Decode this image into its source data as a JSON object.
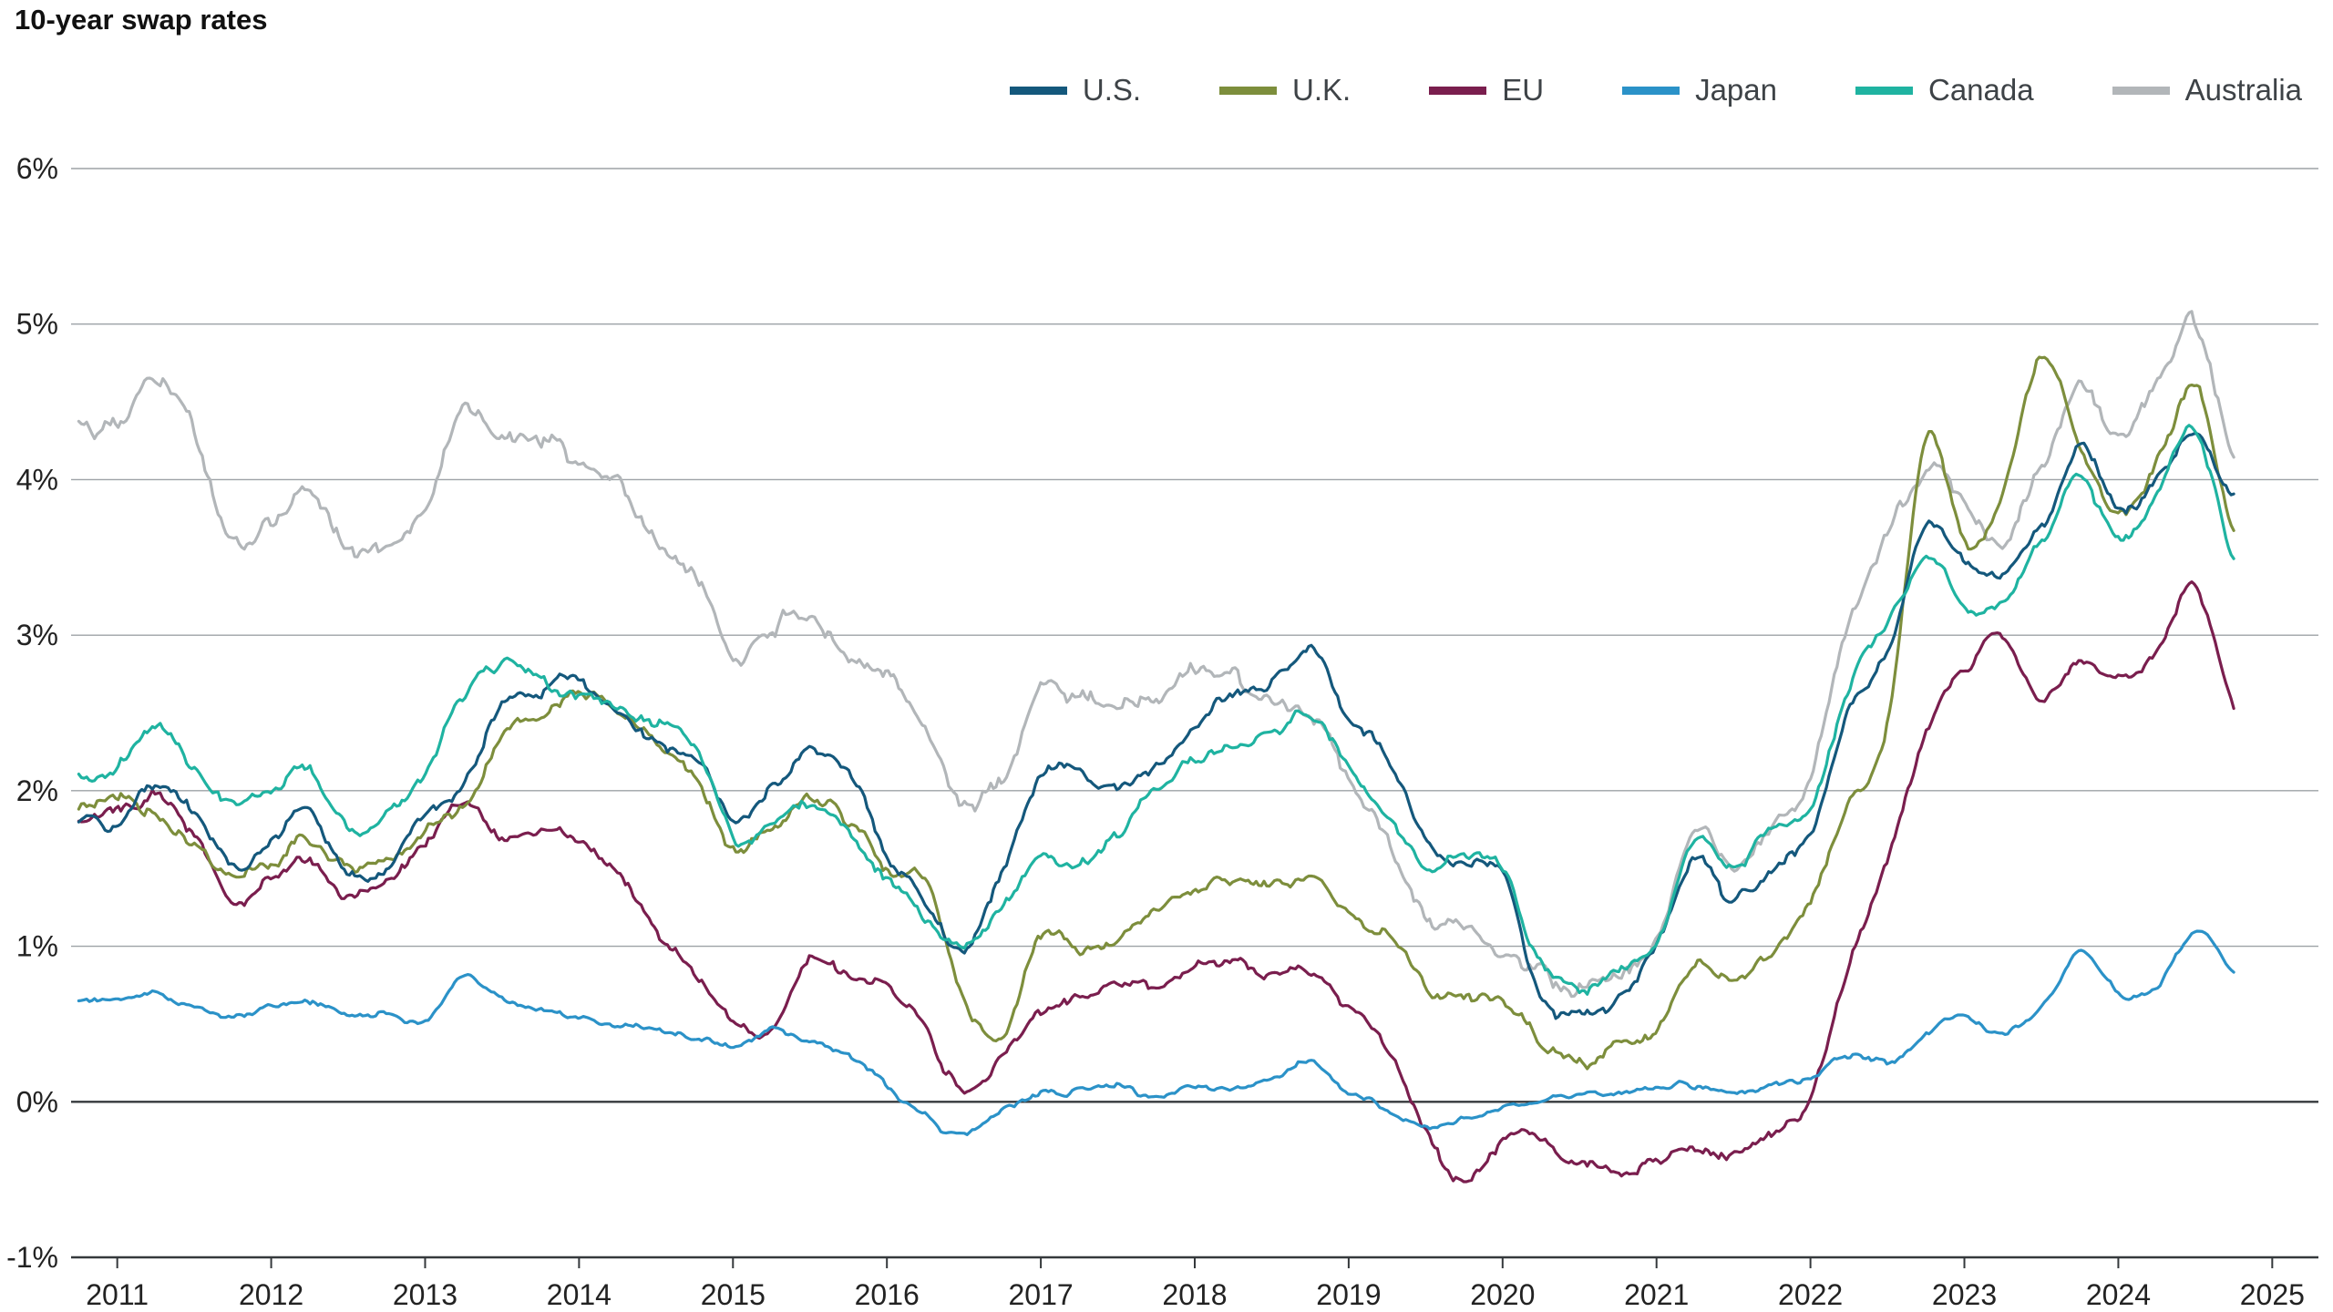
{
  "chart_data": {
    "type": "line",
    "title": "10-year swap rates",
    "xlabel": "",
    "ylabel": "",
    "xlim": [
      2010.7,
      2025.3
    ],
    "ylim": [
      -1,
      6
    ],
    "grid": "horizontal",
    "legend_position": "top-right",
    "y_ticks": [
      {
        "v": 6,
        "label": "6%"
      },
      {
        "v": 5,
        "label": "5%"
      },
      {
        "v": 4,
        "label": "4%"
      },
      {
        "v": 3,
        "label": "3%"
      },
      {
        "v": 2,
        "label": "2%"
      },
      {
        "v": 1,
        "label": "1%"
      },
      {
        "v": 0,
        "label": "0%"
      },
      {
        "v": -1,
        "label": "-1%"
      }
    ],
    "x_ticks": [
      {
        "v": 2011,
        "label": "2011"
      },
      {
        "v": 2012,
        "label": "2012"
      },
      {
        "v": 2013,
        "label": "2013"
      },
      {
        "v": 2014,
        "label": "2014"
      },
      {
        "v": 2015,
        "label": "2015"
      },
      {
        "v": 2016,
        "label": "2016"
      },
      {
        "v": 2017,
        "label": "2017"
      },
      {
        "v": 2018,
        "label": "2018"
      },
      {
        "v": 2019,
        "label": "2019"
      },
      {
        "v": 2020,
        "label": "2020"
      },
      {
        "v": 2021,
        "label": "2021"
      },
      {
        "v": 2022,
        "label": "2022"
      },
      {
        "v": 2023,
        "label": "2023"
      },
      {
        "v": 2024,
        "label": "2024"
      },
      {
        "v": 2025,
        "label": "2025"
      }
    ],
    "x": [
      2010.75,
      2011,
      2011.25,
      2011.5,
      2011.75,
      2012,
      2012.25,
      2012.5,
      2012.75,
      2013,
      2013.25,
      2013.5,
      2013.75,
      2014,
      2014.25,
      2014.5,
      2014.75,
      2015,
      2015.25,
      2015.5,
      2015.75,
      2016,
      2016.25,
      2016.5,
      2016.75,
      2017,
      2017.25,
      2017.5,
      2017.75,
      2018,
      2018.25,
      2018.5,
      2018.75,
      2019,
      2019.25,
      2019.5,
      2019.75,
      2020,
      2020.25,
      2020.5,
      2020.75,
      2021,
      2021.25,
      2021.5,
      2021.75,
      2022,
      2022.25,
      2022.5,
      2022.75,
      2023,
      2023.25,
      2023.5,
      2023.75,
      2024,
      2024.25,
      2024.5,
      2024.75
    ],
    "series": [
      {
        "name": "U.S.",
        "color": "#14587C",
        "jitter": 0.05,
        "values": [
          1.8,
          1.75,
          2.05,
          1.85,
          1.55,
          1.65,
          1.85,
          1.45,
          1.55,
          1.85,
          2.05,
          2.55,
          2.65,
          2.75,
          2.5,
          2.3,
          2.2,
          1.85,
          2.0,
          2.25,
          2.1,
          1.6,
          1.3,
          1.0,
          1.5,
          2.1,
          2.1,
          2.0,
          2.15,
          2.4,
          2.65,
          2.7,
          2.9,
          2.5,
          2.2,
          1.7,
          1.5,
          1.45,
          0.65,
          0.55,
          0.7,
          1.0,
          1.55,
          1.3,
          1.5,
          1.75,
          2.5,
          2.9,
          3.7,
          3.5,
          3.4,
          3.7,
          4.2,
          3.8,
          4.0,
          4.3,
          3.9
        ]
      },
      {
        "name": "U.K.",
        "color": "#7D8E3C",
        "jitter": 0.05,
        "values": [
          1.9,
          1.95,
          1.85,
          1.65,
          1.5,
          1.55,
          1.7,
          1.5,
          1.55,
          1.75,
          1.9,
          2.35,
          2.5,
          2.6,
          2.5,
          2.3,
          2.05,
          1.65,
          1.75,
          1.95,
          1.8,
          1.5,
          1.4,
          0.65,
          0.45,
          1.1,
          1.0,
          1.05,
          1.25,
          1.4,
          1.45,
          1.4,
          1.45,
          1.2,
          1.1,
          0.75,
          0.7,
          0.65,
          0.35,
          0.25,
          0.35,
          0.45,
          0.85,
          0.75,
          1.0,
          1.3,
          1.9,
          2.4,
          4.3,
          3.6,
          3.9,
          4.8,
          4.2,
          3.8,
          4.1,
          4.6,
          3.65
        ]
      },
      {
        "name": "EU",
        "color": "#7A1E4E",
        "jitter": 0.045,
        "values": [
          1.8,
          1.85,
          1.95,
          1.7,
          1.3,
          1.45,
          1.55,
          1.3,
          1.45,
          1.65,
          1.95,
          1.7,
          1.75,
          1.7,
          1.45,
          1.1,
          0.8,
          0.55,
          0.45,
          0.95,
          0.8,
          0.75,
          0.45,
          0.05,
          0.25,
          0.55,
          0.65,
          0.75,
          0.75,
          0.85,
          0.9,
          0.8,
          0.85,
          0.6,
          0.35,
          -0.2,
          -0.55,
          -0.25,
          -0.25,
          -0.4,
          -0.45,
          -0.4,
          -0.3,
          -0.35,
          -0.2,
          0.05,
          0.9,
          1.6,
          2.4,
          2.75,
          2.95,
          2.55,
          2.85,
          2.7,
          2.9,
          3.3,
          2.5
        ]
      },
      {
        "name": "Japan",
        "color": "#2B92C8",
        "jitter": 0.025,
        "values": [
          0.65,
          0.65,
          0.7,
          0.6,
          0.55,
          0.6,
          0.65,
          0.55,
          0.55,
          0.5,
          0.8,
          0.65,
          0.6,
          0.55,
          0.5,
          0.45,
          0.4,
          0.35,
          0.45,
          0.4,
          0.3,
          0.1,
          -0.1,
          -0.2,
          -0.05,
          0.05,
          0.05,
          0.1,
          0.05,
          0.1,
          0.1,
          0.15,
          0.25,
          0.05,
          -0.05,
          -0.15,
          -0.1,
          -0.05,
          0,
          0.05,
          0.05,
          0.1,
          0.1,
          0.05,
          0.1,
          0.15,
          0.3,
          0.25,
          0.45,
          0.55,
          0.45,
          0.6,
          0.95,
          0.7,
          0.75,
          1.1,
          0.85
        ]
      },
      {
        "name": "Canada",
        "color": "#1FB3A1",
        "jitter": 0.05,
        "values": [
          2.1,
          2.15,
          2.4,
          2.1,
          1.9,
          2.0,
          2.1,
          1.75,
          1.85,
          2.1,
          2.6,
          2.8,
          2.7,
          2.6,
          2.5,
          2.4,
          2.3,
          1.7,
          1.8,
          1.9,
          1.7,
          1.4,
          1.2,
          1.0,
          1.25,
          1.6,
          1.5,
          1.7,
          2.0,
          2.2,
          2.3,
          2.35,
          2.5,
          2.1,
          1.8,
          1.5,
          1.6,
          1.5,
          0.85,
          0.75,
          0.85,
          1.0,
          1.7,
          1.5,
          1.75,
          1.9,
          2.7,
          3.1,
          3.5,
          3.2,
          3.2,
          3.6,
          4.0,
          3.6,
          3.9,
          4.3,
          3.5
        ]
      },
      {
        "name": "Australia",
        "color": "#B2B6B9",
        "jitter": 0.07,
        "values": [
          4.35,
          4.35,
          4.65,
          4.3,
          3.55,
          3.75,
          3.95,
          3.55,
          3.6,
          3.85,
          4.4,
          4.25,
          4.3,
          4.1,
          3.95,
          3.6,
          3.4,
          2.85,
          3.0,
          3.15,
          2.9,
          2.75,
          2.4,
          1.9,
          2.1,
          2.65,
          2.6,
          2.55,
          2.6,
          2.75,
          2.7,
          2.55,
          2.5,
          2.1,
          1.7,
          1.2,
          1.15,
          1.0,
          0.85,
          0.75,
          0.85,
          1.1,
          1.75,
          1.5,
          1.85,
          2.1,
          3.1,
          3.7,
          4.1,
          3.9,
          3.6,
          4.1,
          4.6,
          4.3,
          4.6,
          5.0,
          4.2
        ]
      }
    ],
    "style": {
      "grid_color": "#9DA2A6",
      "axis_color": "#35393C",
      "tick_label_color": "#222222",
      "line_width": 3.2
    }
  }
}
